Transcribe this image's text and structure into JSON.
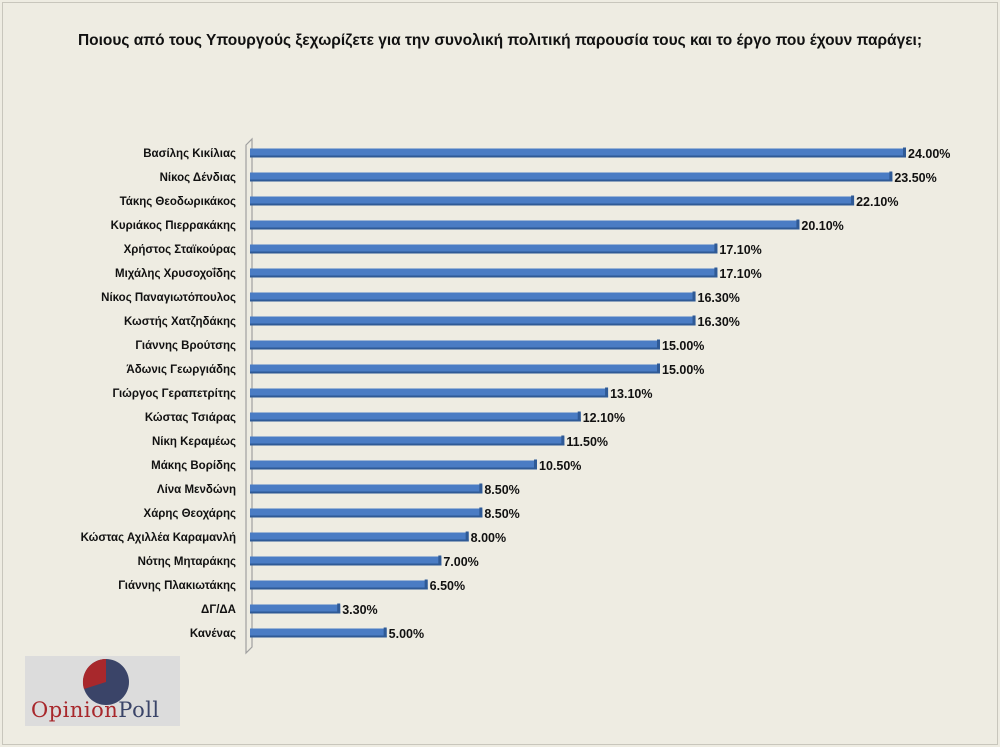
{
  "chart_data": {
    "type": "bar",
    "orientation": "horizontal",
    "title": "Ποιους από τους Υπουργούς  ξεχωρίζετε για την συνολική πολιτική παρουσία τους και το έργο που έχουν παράγει;",
    "categories": [
      "Βασίλης Κικίλιας",
      "Νίκος Δένδιας",
      "Τάκης Θεοδωρικάκος",
      "Κυριάκος Πιερρακάκης",
      "Χρήστος Σταϊκούρας",
      "Μιχάλης Χρυσοχοΐδης",
      "Νίκος Παναγιωτόπουλος",
      "Κωστής Χατζηδάκης",
      "Γιάννης Βρούτσης",
      "Άδωνις Γεωργιάδης",
      "Γιώργος Γεραπετρίτης",
      "Κώστας Τσιάρας",
      "Νίκη Κεραμέως",
      "Μάκης Βορίδης",
      "Λίνα Μενδώνη",
      "Χάρης Θεοχάρης",
      "Κώστας Αχιλλέα Καραμανλή",
      "Νότης Μηταράκης",
      "Γιάννης Πλακιωτάκης",
      "ΔΓ/ΔΑ",
      "Κανένας"
    ],
    "values": [
      24.0,
      23.5,
      22.1,
      20.1,
      17.1,
      17.1,
      16.3,
      16.3,
      15.0,
      15.0,
      13.1,
      12.1,
      11.5,
      10.5,
      8.5,
      8.5,
      8.0,
      7.0,
      6.5,
      3.3,
      5.0
    ],
    "data_labels": [
      "24.00%",
      "23.50%",
      "22.10%",
      "20.10%",
      "17.10%",
      "17.10%",
      "16.30%",
      "16.30%",
      "15.00%",
      "15.00%",
      "13.10%",
      "12.10%",
      "11.50%",
      "10.50%",
      "8.50%",
      "8.50%",
      "8.00%",
      "7.00%",
      "6.50%",
      "3.30%",
      "5.00%"
    ],
    "unit": "%",
    "xlim": [
      0,
      24
    ],
    "grid": false,
    "bar_color": "#4a7cc4"
  },
  "logo": {
    "text_part1": "Opinion",
    "text_part2": "Poll",
    "colors": {
      "red": "#a8282c",
      "navy": "#3a4468"
    }
  }
}
